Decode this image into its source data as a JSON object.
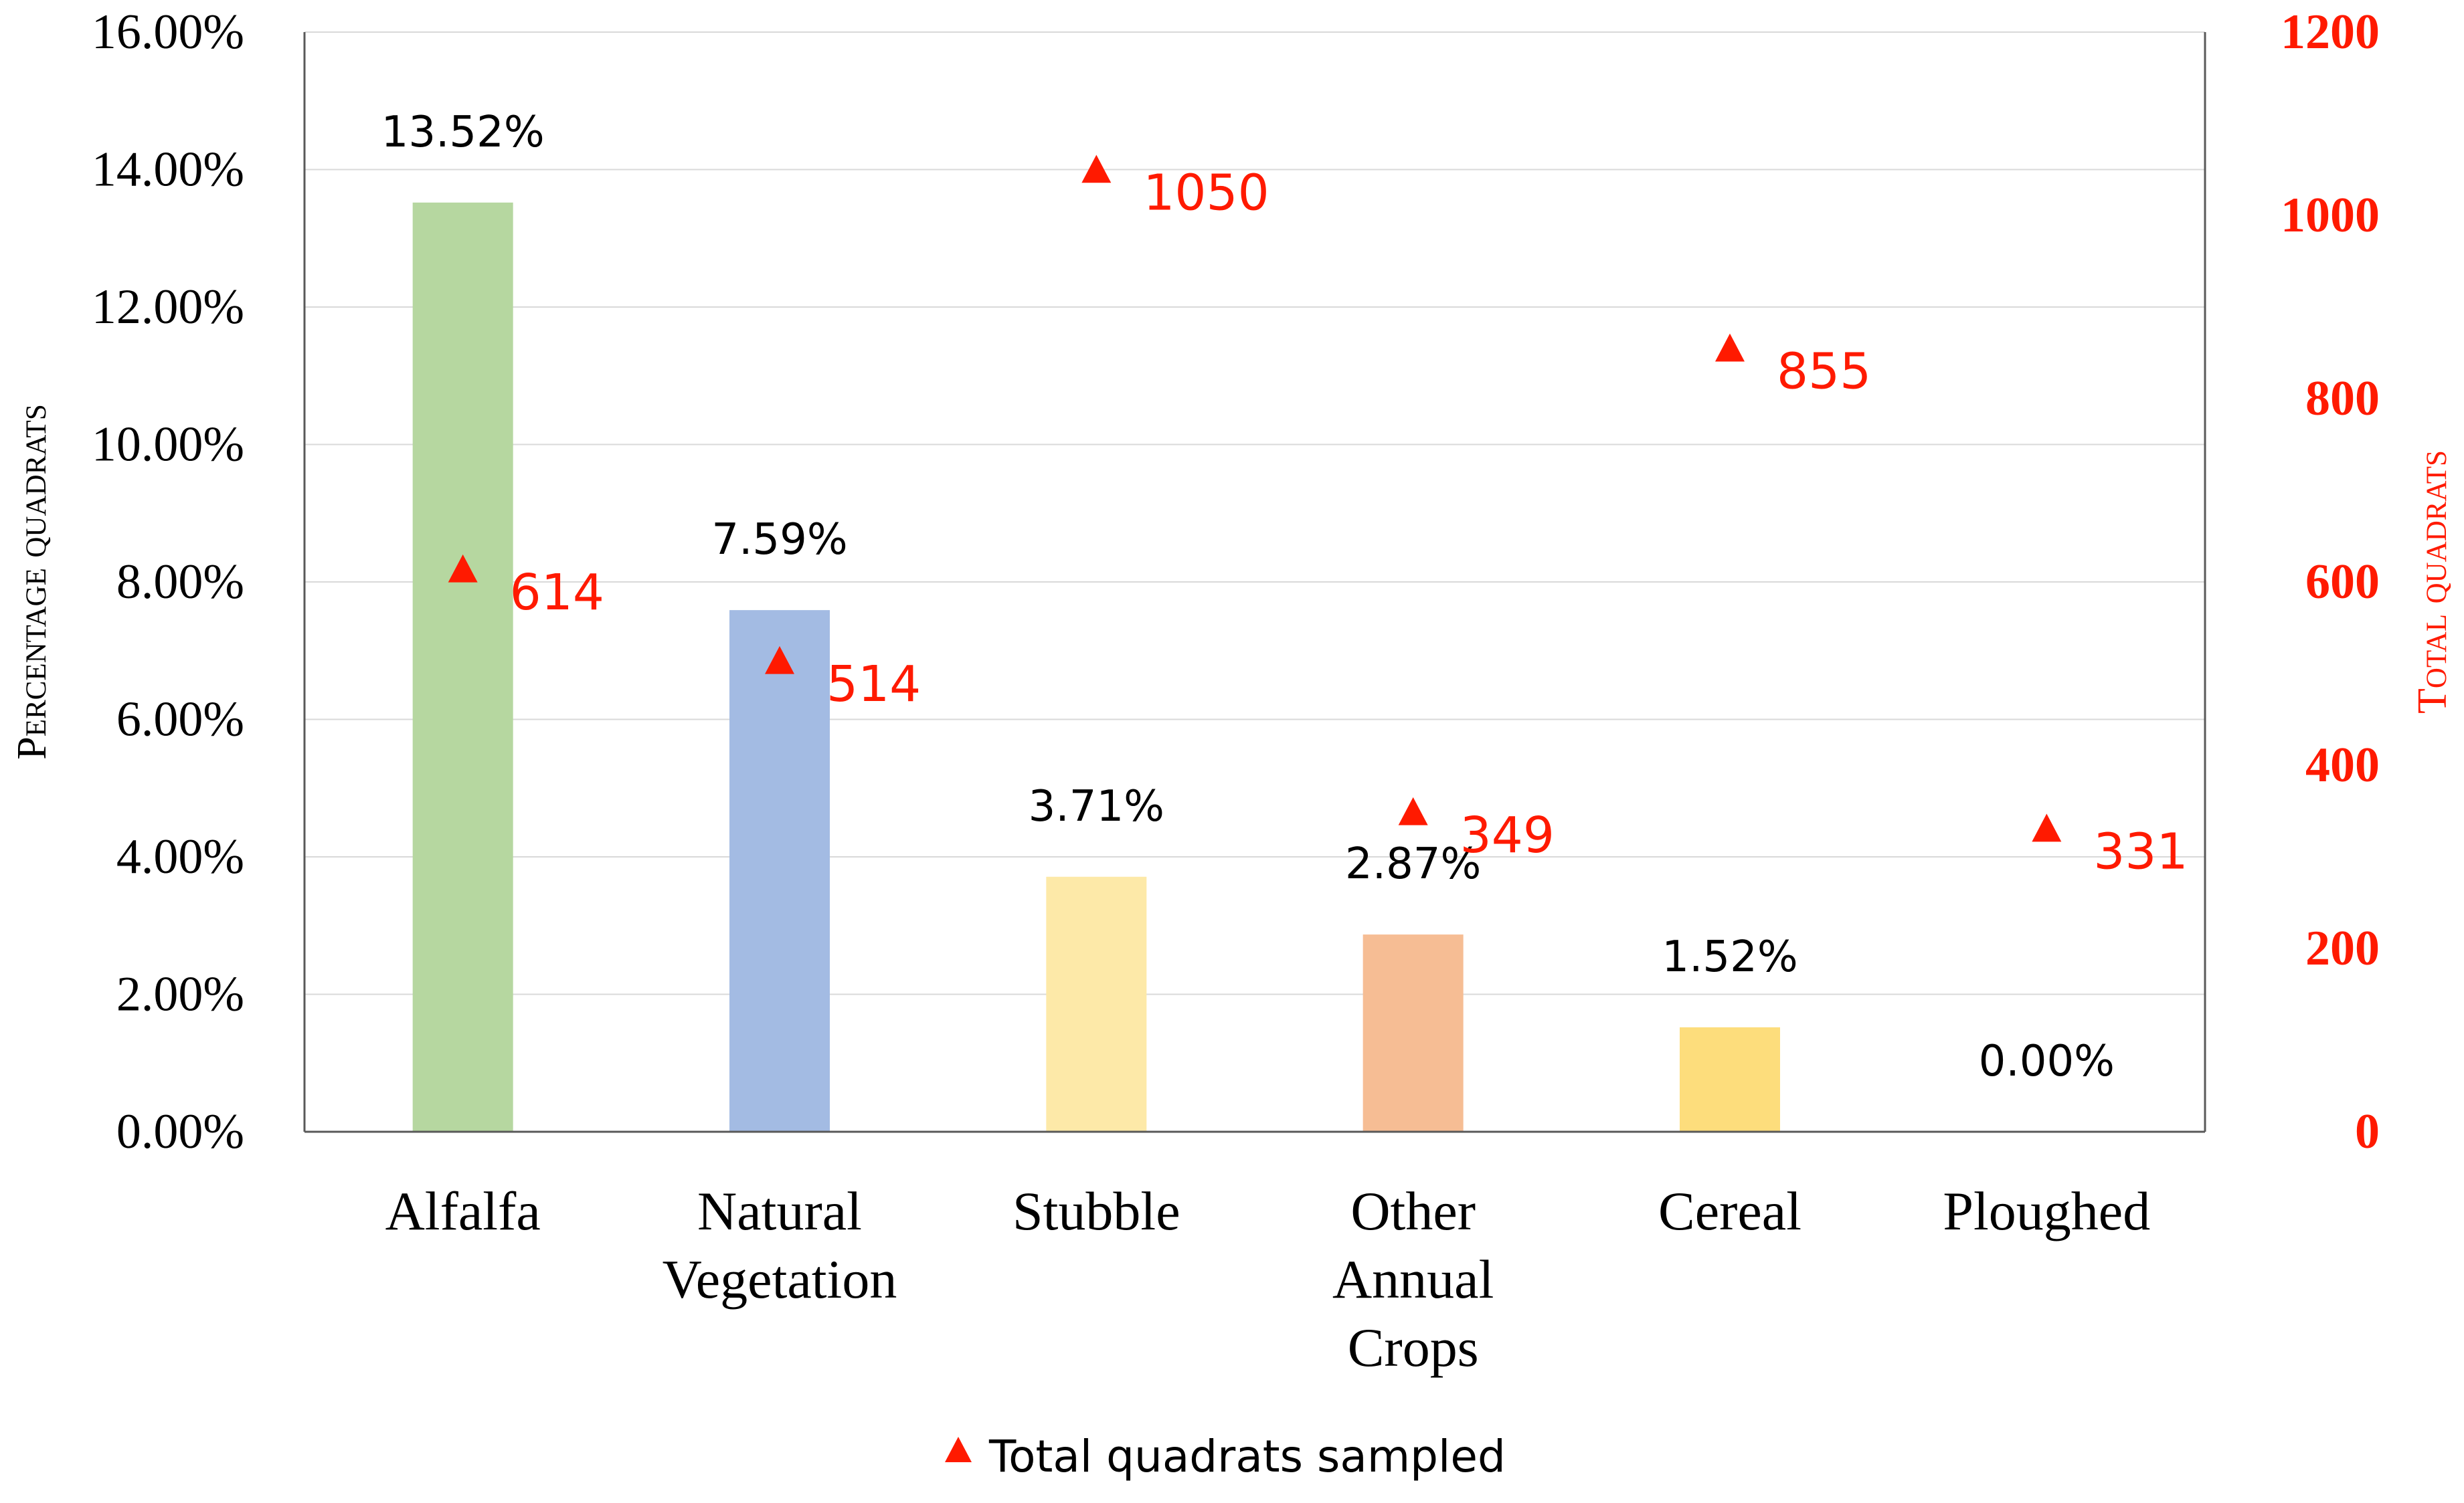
{
  "chart_data": {
    "type": "bar",
    "categories": [
      [
        "Alfalfa"
      ],
      [
        "Natural",
        "Vegetation"
      ],
      [
        "Stubble"
      ],
      [
        "Other",
        "Annual",
        "Crops"
      ],
      [
        "Cereal"
      ],
      [
        "Ploughed"
      ]
    ],
    "series": [
      {
        "type": "bar",
        "axis": "left",
        "values": [
          13.52,
          7.59,
          3.71,
          2.87,
          1.52,
          0.0
        ],
        "labels": [
          "13.52%",
          "7.59%",
          "3.71%",
          "2.87%",
          "1.52%",
          "0.00%"
        ],
        "colors": [
          "#b6d7a0",
          "#a3bbe3",
          "#fde9a8",
          "#f6bd94",
          "#fddd7c",
          "#dddddd"
        ]
      },
      {
        "type": "scatter",
        "axis": "right",
        "name": "Total quadrats sampled",
        "marker": "triangle",
        "color": "#ff1a00",
        "values": [
          614,
          514,
          1050,
          349,
          855,
          331
        ],
        "labels": [
          "614",
          "514",
          "1050",
          "349",
          "855",
          "331"
        ]
      }
    ],
    "ylabel": "Percentage quadrats",
    "y2label": "Total quadrats",
    "ylim": [
      0,
      16
    ],
    "y2lim": [
      0,
      1200
    ],
    "yticks": [
      "0.00%",
      "2.00%",
      "4.00%",
      "6.00%",
      "8.00%",
      "10.00%",
      "12.00%",
      "14.00%",
      "16.00%"
    ],
    "y2ticks": [
      "0",
      "200",
      "400",
      "600",
      "800",
      "1000",
      "1200"
    ],
    "grid": true,
    "legend": "bottom-center"
  }
}
